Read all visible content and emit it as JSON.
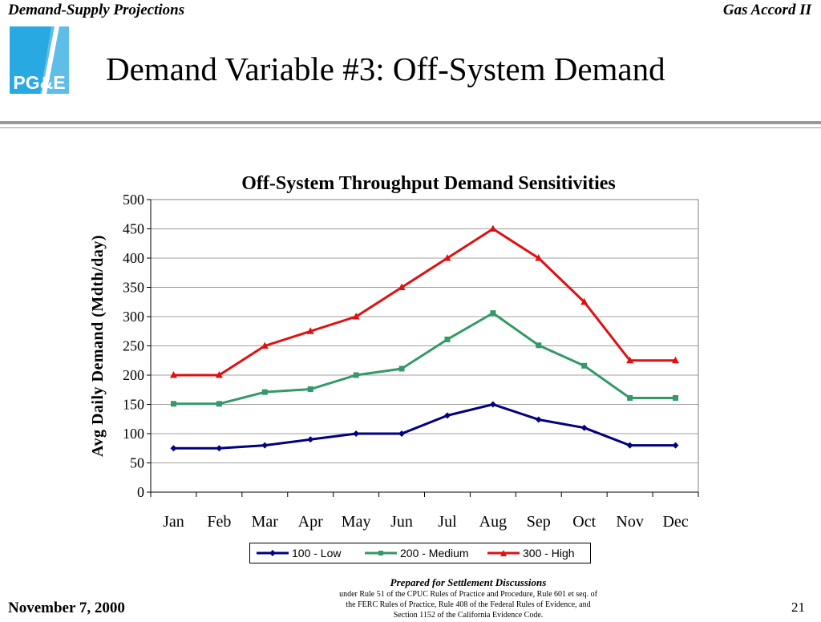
{
  "header": {
    "left": "Demand-Supply Projections",
    "right": "Gas Accord II"
  },
  "logo": {
    "text": "PG&E",
    "bg_color": "#29a9e1",
    "accent_color": "#f6a21a"
  },
  "slide_title": "Demand Variable #3:  Off-System Demand",
  "chart_data": {
    "type": "line",
    "title": "Off-System Throughput Demand Sensitivities",
    "xlabel": "",
    "ylabel": "Avg Daily Demand (Mdth/day)",
    "categories": [
      "Jan",
      "Feb",
      "Mar",
      "Apr",
      "May",
      "Jun",
      "Jul",
      "Aug",
      "Sep",
      "Oct",
      "Nov",
      "Dec"
    ],
    "ylim": [
      0,
      500
    ],
    "yticks": [
      0,
      50,
      100,
      150,
      200,
      250,
      300,
      350,
      400,
      450,
      500
    ],
    "grid": true,
    "legend_position": "bottom",
    "series": [
      {
        "name": "100 - Low",
        "color": "#000080",
        "marker": "diamond",
        "values": [
          75,
          75,
          80,
          90,
          100,
          100,
          131,
          150,
          124,
          110,
          80,
          80
        ]
      },
      {
        "name": "200 - Medium",
        "color": "#339966",
        "marker": "square",
        "values": [
          151,
          151,
          171,
          176,
          200,
          211,
          261,
          306,
          251,
          216,
          161,
          161
        ]
      },
      {
        "name": "300 - High",
        "color": "#e01010",
        "marker": "triangle",
        "values": [
          200,
          200,
          250,
          275,
          300,
          350,
          400,
          450,
          400,
          325,
          225,
          225
        ]
      }
    ]
  },
  "footer": {
    "date": "November 7, 2000",
    "page": "21",
    "center_title": "Prepared for Settlement Discussions",
    "center_line1": "under Rule 51 of the CPUC Rules of Practice and Procedure, Rule 601 et seq. of",
    "center_line2": "the FERC Rules of Practice, Rule 408 of the Federal Rules of Evidence, and",
    "center_line3": "Section 1152 of the California Evidence Code."
  }
}
